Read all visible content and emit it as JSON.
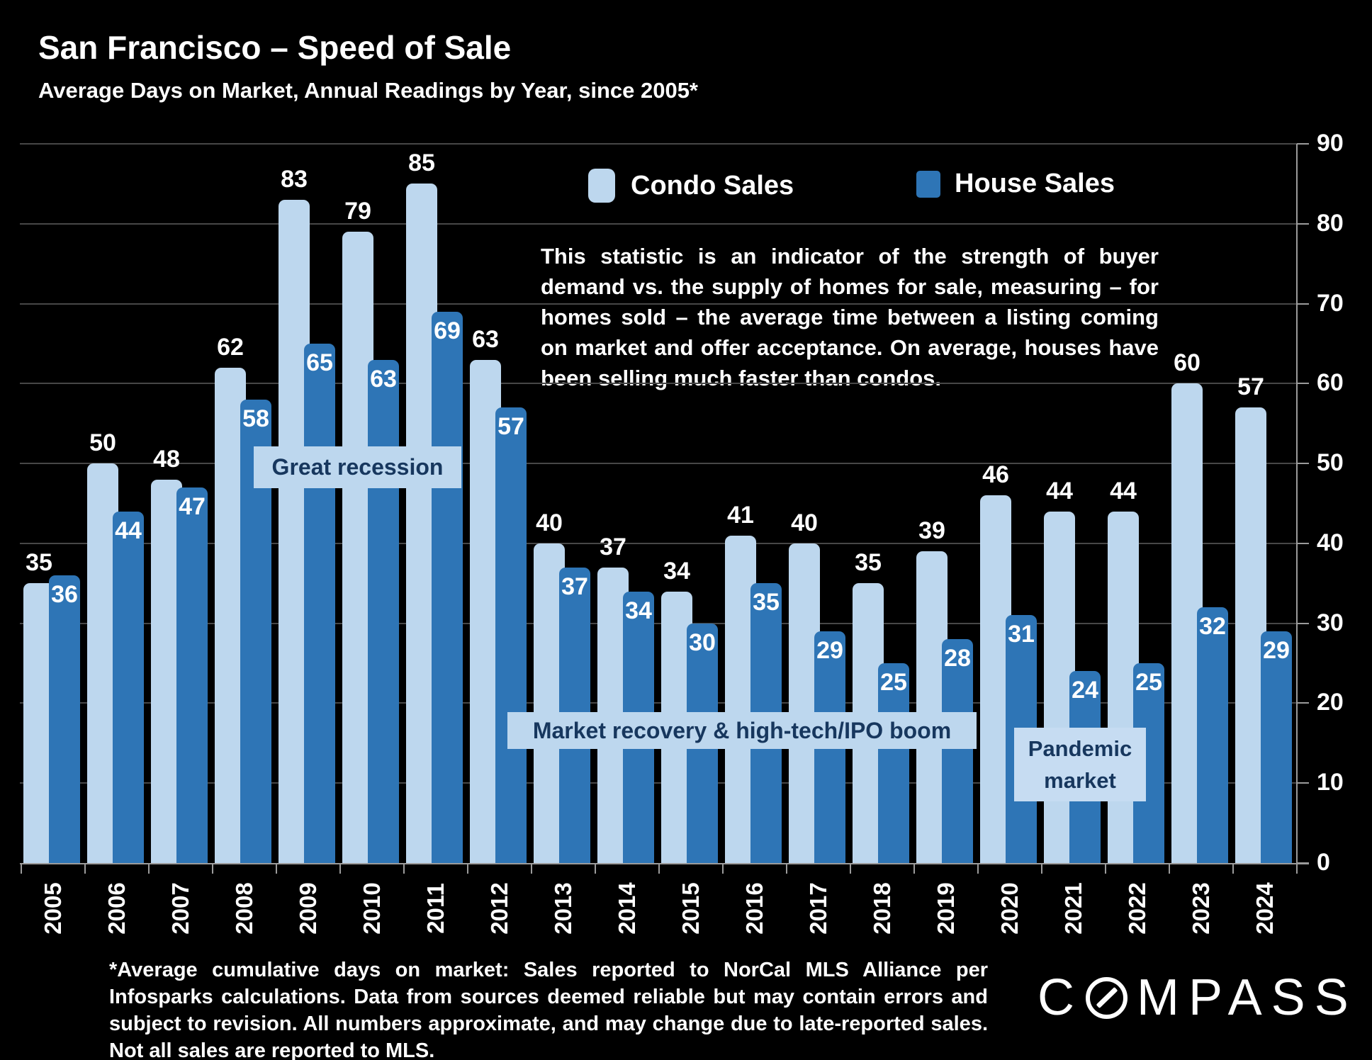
{
  "header": {
    "title": "San Francisco – Speed of Sale",
    "subtitle": "Average Days on Market, Annual Readings by Year, since 2005*"
  },
  "legend": {
    "condo_label": "Condo Sales",
    "house_label": "House Sales"
  },
  "description": "This statistic is an indicator of the strength of buyer demand vs. the supply of homes for sale, measuring – for homes sold – the average time between a listing coming on market and offer acceptance. On average, houses have been selling much faster than condos.",
  "annotations": {
    "recession": "Great recession",
    "recovery": "Market recovery &  high-tech/IPO boom",
    "pandemic_line1": "Pandemic",
    "pandemic_line2": "market"
  },
  "footnote": "*Average cumulative days on market: Sales reported to NorCal MLS Alliance per Infosparks calculations. Data from sources deemed reliable but may contain errors and subject to revision. All numbers approximate, and may change due to late-reported sales. Not all sales are reported to MLS.",
  "logo": {
    "part1": "C",
    "part2": "MPASS"
  },
  "colors": {
    "condo": "#BDD7EE",
    "house": "#2E75B6",
    "callout_bg": "#BDD7EE",
    "callout_bg_pandemic": "#C6DCF2",
    "callout_text": "#17375E",
    "gridline": "#474747",
    "axis": "#9B9B9B",
    "background": "#000000",
    "text": "#FFFFFF"
  },
  "chart_data": {
    "type": "bar",
    "title": "San Francisco – Speed of Sale",
    "subtitle": "Average Days on Market, Annual Readings by Year, since 2005*",
    "categories": [
      "2005",
      "2006",
      "2007",
      "2008",
      "2009",
      "2010",
      "2011",
      "2012",
      "2013",
      "2014",
      "2015",
      "2016",
      "2017",
      "2018",
      "2019",
      "2020",
      "2021",
      "2022",
      "2023",
      "2024"
    ],
    "series": [
      {
        "name": "Condo Sales",
        "color": "#BDD7EE",
        "values": [
          35,
          50,
          48,
          62,
          83,
          79,
          85,
          63,
          40,
          37,
          34,
          41,
          40,
          35,
          39,
          46,
          44,
          44,
          60,
          57
        ]
      },
      {
        "name": "House Sales",
        "color": "#2E75B6",
        "values": [
          36,
          44,
          47,
          58,
          65,
          63,
          69,
          57,
          37,
          34,
          30,
          35,
          29,
          25,
          28,
          31,
          24,
          25,
          32,
          29
        ]
      }
    ],
    "xlabel": "",
    "ylabel": "",
    "ylim": [
      0,
      90
    ],
    "ytick_step": 10,
    "y_axis_side": "right",
    "grid": true,
    "legend_position": "top-center",
    "data_labels": true
  }
}
